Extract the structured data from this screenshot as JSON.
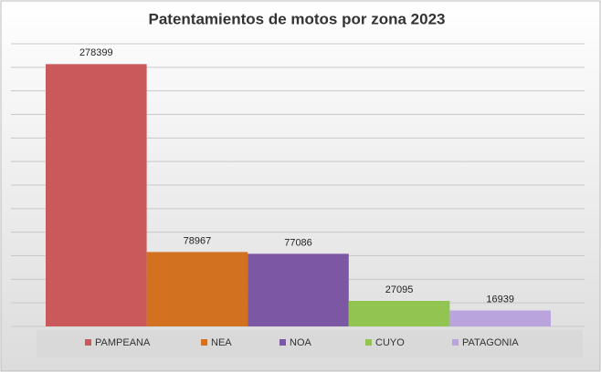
{
  "chart_data": {
    "type": "bar",
    "title": "Patentamientos de motos por zona 2023",
    "categories": [
      "PAMPEANA",
      "NEA",
      "NOA",
      "CUYO",
      "PATAGONIA"
    ],
    "values": [
      278399,
      78967,
      77086,
      27095,
      16939
    ],
    "colors": [
      "#c9595b",
      "#d2711f",
      "#7c57a4",
      "#92c452",
      "#b9a4dd"
    ],
    "ylim": [
      0,
      300000
    ],
    "yticks": [
      0,
      25000,
      50000,
      75000,
      100000,
      125000,
      150000,
      175000,
      200000,
      225000,
      250000,
      275000,
      300000
    ],
    "grid": true,
    "legend": "bottom"
  }
}
